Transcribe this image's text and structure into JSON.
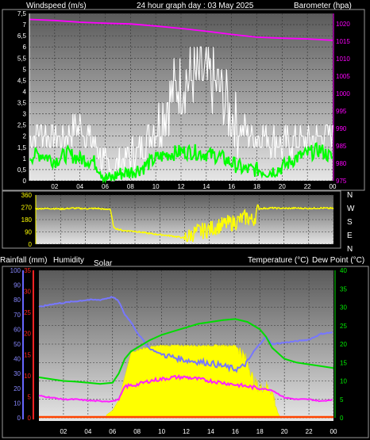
{
  "chart_data": [
    {
      "type": "line",
      "title": "24 hour graph day : 03 May 2025",
      "ylabel_left": "Windspeed (m/s)",
      "ylabel_right": "Barometer (hpa)",
      "x_ticks": [
        "02",
        "04",
        "06",
        "08",
        "10",
        "12",
        "14",
        "16",
        "18",
        "20",
        "22",
        "00"
      ],
      "y_left_ticks": [
        "0",
        "0,5",
        "1",
        "1,5",
        "2",
        "2,5",
        "3",
        "3,5",
        "4",
        "4,5",
        "5",
        "5,5",
        "6",
        "6,5",
        "7",
        "7,5"
      ],
      "y_right_ticks": [
        "975",
        "980",
        "985",
        "990",
        "995",
        "1000",
        "1005",
        "1010",
        "1015",
        "1020"
      ],
      "ylim_left": [
        0,
        7.5
      ],
      "ylim_right": [
        975,
        1023
      ],
      "series": [
        {
          "name": "Barometer",
          "color": "#ff00ff",
          "axis": "right",
          "x": [
            0,
            2,
            4,
            6,
            8,
            10,
            12,
            14,
            16,
            18,
            20,
            22,
            24
          ],
          "values": [
            1021.3,
            1021.0,
            1020.5,
            1020.2,
            1020.0,
            1019.4,
            1018.7,
            1017.9,
            1017.0,
            1016.2,
            1015.9,
            1015.7,
            1015.3
          ]
        },
        {
          "name": "Wind gust",
          "color": "#ffffff",
          "axis": "left",
          "x": [
            0,
            1,
            2,
            3,
            4,
            5,
            5.5,
            6,
            6.5,
            7,
            8,
            9,
            10,
            11,
            12,
            13,
            14,
            15,
            16,
            17,
            18,
            19,
            20,
            21,
            22,
            23,
            24
          ],
          "values": [
            2.0,
            2.3,
            1.9,
            2.1,
            2.4,
            1.8,
            1.5,
            0.6,
            0.3,
            0.8,
            1.2,
            1.6,
            2.4,
            3.6,
            4.4,
            4.6,
            4.5,
            4.1,
            3.0,
            2.2,
            2.0,
            1.9,
            1.6,
            1.8,
            1.7,
            1.9,
            2.1
          ]
        },
        {
          "name": "Wind speed",
          "color": "#00ff00",
          "axis": "left",
          "x": [
            0,
            1,
            2,
            3,
            4,
            5,
            5.5,
            6,
            6.5,
            7,
            8,
            9,
            10,
            11,
            12,
            13,
            14,
            15,
            16,
            17,
            18,
            19,
            20,
            21,
            22,
            23,
            24
          ],
          "values": [
            1.1,
            1.2,
            0.9,
            1.2,
            1.0,
            0.9,
            0.6,
            0.1,
            0.1,
            0.3,
            0.4,
            0.6,
            1.0,
            1.2,
            1.3,
            1.3,
            1.2,
            1.1,
            0.8,
            0.5,
            0.5,
            0.4,
            0.6,
            1.0,
            1.2,
            1.4,
            1.0
          ]
        }
      ]
    },
    {
      "type": "scatter",
      "ylabel_right": [
        "N",
        "W",
        "S",
        "E",
        "N"
      ],
      "y_left_ticks": [
        "0",
        "90",
        "180",
        "270",
        "360"
      ],
      "ylim": [
        0,
        360
      ],
      "series": [
        {
          "name": "Wind direction",
          "color": "#ffff00",
          "x": [
            0,
            1,
            2,
            3,
            4,
            5,
            5.5,
            6,
            6.3,
            7,
            8,
            9,
            10,
            11,
            12,
            13,
            14,
            15,
            16,
            17,
            17.5,
            18,
            19,
            20,
            21,
            22,
            23,
            24
          ],
          "values": [
            260,
            262,
            258,
            264,
            260,
            262,
            255,
            258,
            120,
            100,
            95,
            80,
            70,
            60,
            45,
            90,
            110,
            140,
            160,
            200,
            170,
            260,
            265,
            262,
            264,
            262,
            265,
            262
          ]
        }
      ]
    },
    {
      "type": "line",
      "ylabel_rain": "Rainfall (mm)",
      "ylabel_humidity": "Humidity",
      "ylabel_solar": "Solar",
      "ylabel_temp": "Temperature (°C)",
      "ylabel_dew": "Dew Point (°C)",
      "rain_ticks": [
        "0",
        "5",
        "10",
        "15",
        "20",
        "25",
        "30",
        "35"
      ],
      "humidity_ticks": [
        "0",
        "10",
        "20",
        "30",
        "40",
        "50",
        "60",
        "70",
        "80",
        "90",
        "100"
      ],
      "temp_ticks": [
        "0",
        "5",
        "10",
        "15",
        "20",
        "25",
        "30",
        "35",
        "40"
      ],
      "ylim_humidity": [
        0,
        100
      ],
      "ylim_temp": [
        0,
        40
      ],
      "series": [
        {
          "name": "Humidity",
          "color": "#7777ff",
          "axis": "humidity",
          "x": [
            0,
            1,
            2,
            3,
            4,
            5,
            6,
            6.5,
            7,
            7.5,
            8,
            9,
            10,
            11,
            12,
            13,
            14,
            15,
            16,
            16.5,
            17,
            17.5,
            18,
            18.5,
            19,
            20,
            21,
            22,
            23,
            24
          ],
          "values": [
            75,
            77,
            78,
            79,
            80,
            80,
            82,
            79,
            70,
            65,
            58,
            47,
            43,
            41,
            39,
            38,
            37,
            35,
            33,
            34,
            38,
            45,
            50,
            55,
            50,
            51,
            52,
            53,
            57,
            58
          ]
        },
        {
          "name": "Temperature",
          "color": "#00dd00",
          "axis": "temp",
          "x": [
            0,
            1,
            2,
            3,
            4,
            5,
            6,
            6.5,
            7,
            7.5,
            8,
            9,
            10,
            11,
            12,
            13,
            14,
            15,
            16,
            17,
            18,
            18.5,
            19,
            20,
            21,
            22,
            23,
            24
          ],
          "values": [
            11,
            10.5,
            10,
            9.8,
            9.5,
            9.2,
            9.5,
            12,
            16,
            18,
            19,
            21,
            22.5,
            23.5,
            24.5,
            25.5,
            26,
            26.5,
            26.8,
            26,
            24,
            22,
            19,
            16,
            15,
            14.5,
            14,
            13.5
          ]
        },
        {
          "name": "Dew Point",
          "color": "#ff22ff",
          "axis": "temp",
          "x": [
            0,
            1,
            2,
            3,
            4,
            5,
            6,
            6.5,
            7,
            8,
            9,
            10,
            11,
            12,
            13,
            14,
            15,
            16,
            17,
            18,
            19,
            20,
            21,
            22,
            23,
            24
          ],
          "values": [
            6,
            5.5,
            5,
            5,
            4.7,
            4.5,
            4.5,
            5,
            8.5,
            9,
            10,
            10.5,
            11,
            11,
            10.5,
            10,
            9.5,
            9,
            8.5,
            8,
            7.5,
            5.5,
            5,
            5,
            4.5,
            5
          ]
        },
        {
          "name": "Solar",
          "color": "#ffff00",
          "axis": "humidity",
          "x": [
            5.5,
            6,
            6.5,
            7,
            7.5,
            8,
            9,
            10,
            11,
            12,
            13,
            14,
            15,
            16,
            16.5,
            17,
            17.5,
            18,
            18.5,
            19,
            19.5,
            19.7
          ],
          "values": [
            2,
            5,
            12,
            28,
            44,
            46,
            48,
            49,
            49,
            49,
            49,
            49,
            49,
            49,
            45,
            38,
            25,
            20,
            22,
            18,
            3,
            0
          ]
        },
        {
          "name": "Rainfall",
          "color": "#ff4400",
          "axis": "rain",
          "x": [
            0,
            24
          ],
          "values": [
            0,
            0
          ]
        }
      ]
    }
  ]
}
